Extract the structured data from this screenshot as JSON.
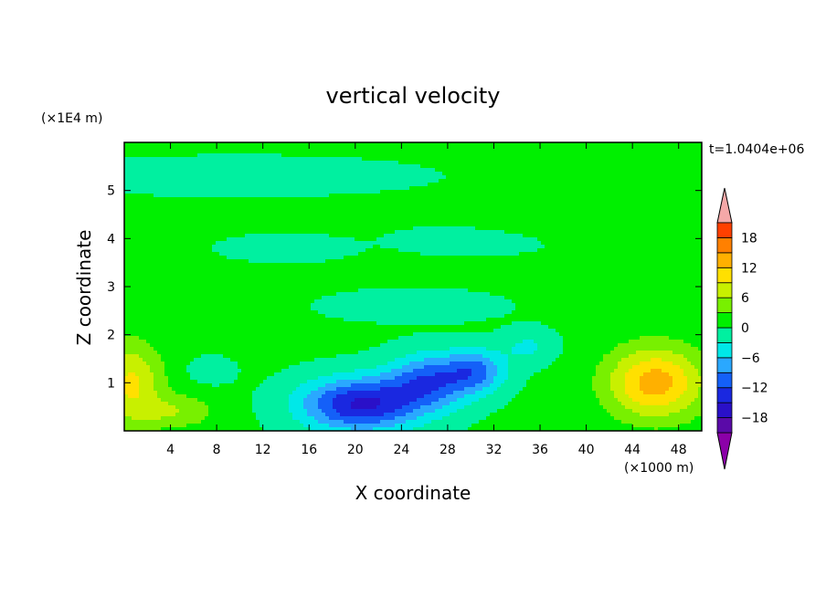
{
  "chart_data": {
    "type": "heatmap",
    "title": "vertical velocity",
    "xlabel": "X coordinate",
    "ylabel": "Z coordinate",
    "x_unit": "(×1000 m)",
    "y_unit": "(×1E4 m)",
    "time_label": "t=1.0404e+06",
    "xlim": [
      0,
      50
    ],
    "ylim": [
      0,
      6
    ],
    "xticks": [
      4,
      8,
      12,
      16,
      20,
      24,
      28,
      32,
      36,
      40,
      44,
      48
    ],
    "yticks": [
      1,
      2,
      3,
      4,
      5
    ],
    "colorbar": {
      "levels": [
        -21,
        -18,
        -15,
        -12,
        -9,
        -6,
        -3,
        0,
        3,
        6,
        9,
        12,
        15,
        18,
        21
      ],
      "labels": [
        -18,
        -12,
        -6,
        0,
        6,
        12,
        18
      ],
      "under_color": "#8b00a8",
      "over_color": "#f4a8a8",
      "colors": [
        "#5a0aa8",
        "#2a10c8",
        "#1a28e0",
        "#1460f8",
        "#2aa8ff",
        "#00e8e8",
        "#00f0a0",
        "#00f000",
        "#78f000",
        "#c8f000",
        "#ffe000",
        "#ffb000",
        "#ff8000",
        "#ff4000"
      ]
    },
    "background_value": 0.5,
    "features": [
      {
        "x": 20.5,
        "z": 0.55,
        "sx": 5.2,
        "sz": 0.55,
        "amp": -16
      },
      {
        "x": 26.5,
        "z": 1.05,
        "sx": 3.6,
        "sz": 0.55,
        "amp": -11
      },
      {
        "x": 30.5,
        "z": 1.25,
        "sx": 2.6,
        "sz": 0.45,
        "amp": -9
      },
      {
        "x": 35,
        "z": 1.75,
        "sx": 2.2,
        "sz": 0.35,
        "amp": -4
      },
      {
        "x": 46,
        "z": 1.0,
        "sx": 4.2,
        "sz": 0.75,
        "amp": 13
      },
      {
        "x": 0.5,
        "z": 1.0,
        "sx": 2.8,
        "sz": 0.85,
        "amp": 9
      },
      {
        "x": 4.5,
        "z": 0.4,
        "sx": 3.5,
        "sz": 0.35,
        "amp": 5
      },
      {
        "x": 7.5,
        "z": 1.25,
        "sx": 1.8,
        "sz": 0.25,
        "amp": -3
      },
      {
        "x": 10,
        "z": 5.3,
        "sx": 14,
        "sz": 0.35,
        "amp": -2.5
      },
      {
        "x": 38,
        "z": 4.35,
        "sx": 9,
        "sz": 0.3,
        "amp": 2.5
      },
      {
        "x": 30,
        "z": 4.0,
        "sx": 6,
        "sz": 0.3,
        "amp": -2.5
      },
      {
        "x": 14,
        "z": 3.8,
        "sx": 5,
        "sz": 0.25,
        "amp": -2.5
      },
      {
        "x": 45,
        "z": 5.8,
        "sx": 6,
        "sz": 0.35,
        "amp": 2.5
      },
      {
        "x": 25,
        "z": 2.6,
        "sx": 7,
        "sz": 0.3,
        "amp": -2.5
      }
    ]
  }
}
